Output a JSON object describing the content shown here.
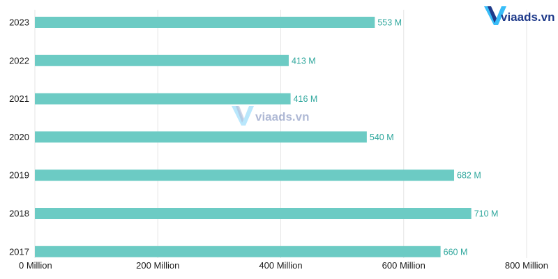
{
  "brand": {
    "logo_text": "viaads.vn",
    "watermark_text": "viaads.vn"
  },
  "colors": {
    "bar": "#6ccbc4",
    "data_label": "#2fa79d",
    "grid": "#e6e6e6",
    "logo_blue": "#1e3a8a",
    "logo_accent": "#38bdf8"
  },
  "chart_data": {
    "type": "bar",
    "orientation": "horizontal",
    "categories": [
      "2023",
      "2022",
      "2021",
      "2020",
      "2019",
      "2018",
      "2017"
    ],
    "values": [
      553,
      413,
      416,
      540,
      682,
      710,
      660
    ],
    "value_labels": [
      "553 M",
      "413 M",
      "416 M",
      "540 M",
      "682 M",
      "710 M",
      "660 M"
    ],
    "xlim": [
      0,
      800
    ],
    "x_ticks": [
      0,
      200,
      400,
      600,
      800
    ],
    "x_tick_labels": [
      "0 Million",
      "200 Million",
      "400 Million",
      "600 Million",
      "800 Million"
    ],
    "grid": "vertical",
    "legend": "none",
    "title": "",
    "xlabel": "",
    "ylabel": ""
  }
}
